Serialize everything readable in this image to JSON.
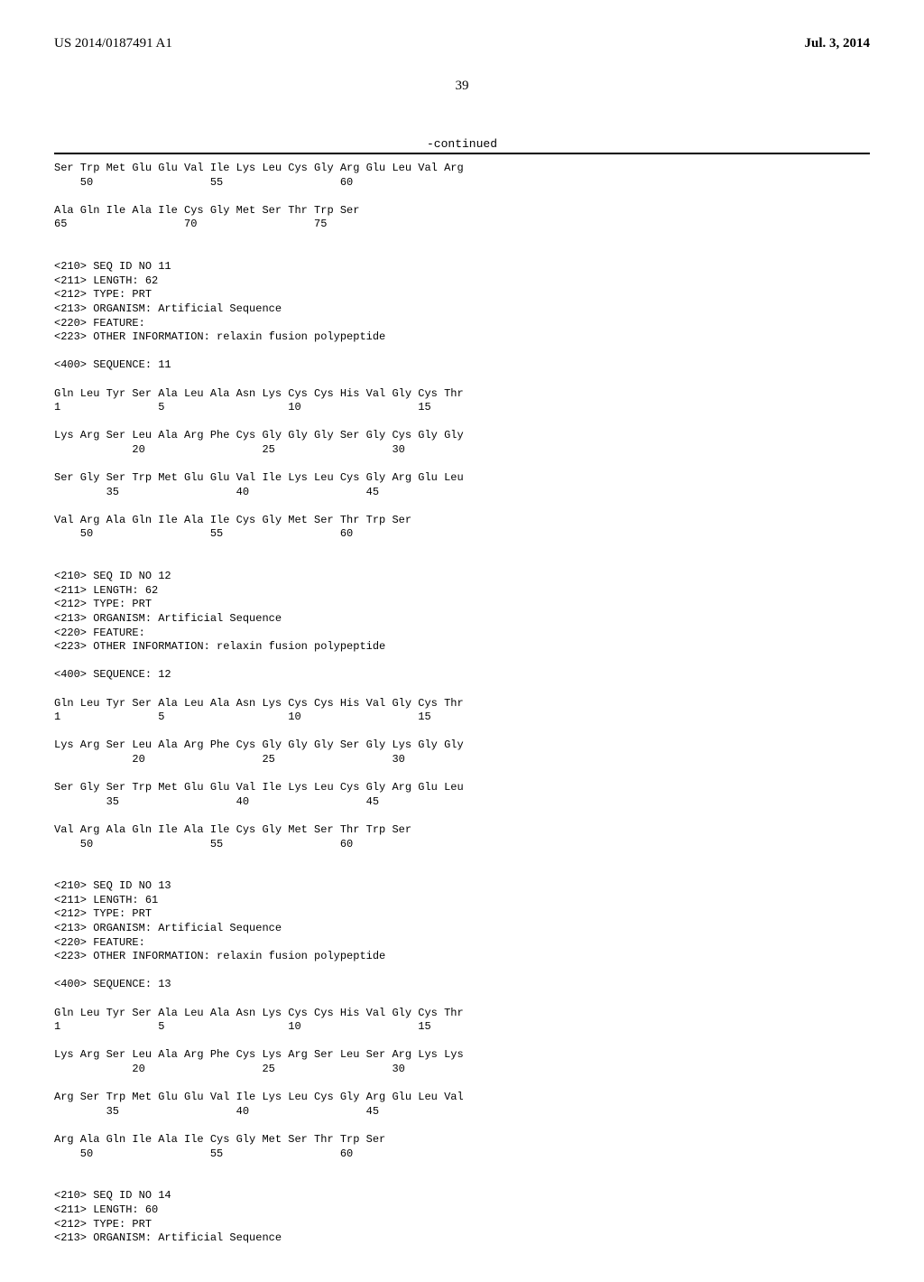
{
  "header": {
    "pub_num": "US 2014/0187491 A1",
    "pub_date": "Jul. 3, 2014"
  },
  "page_num": "39",
  "continued_label": "-continued",
  "listing_text": "Ser Trp Met Glu Glu Val Ile Lys Leu Cys Gly Arg Glu Leu Val Arg\n    50                  55                  60\n\nAla Gln Ile Ala Ile Cys Gly Met Ser Thr Trp Ser\n65                  70                  75\n\n\n<210> SEQ ID NO 11\n<211> LENGTH: 62\n<212> TYPE: PRT\n<213> ORGANISM: Artificial Sequence\n<220> FEATURE:\n<223> OTHER INFORMATION: relaxin fusion polypeptide\n\n<400> SEQUENCE: 11\n\nGln Leu Tyr Ser Ala Leu Ala Asn Lys Cys Cys His Val Gly Cys Thr\n1               5                   10                  15\n\nLys Arg Ser Leu Ala Arg Phe Cys Gly Gly Gly Ser Gly Cys Gly Gly\n            20                  25                  30\n\nSer Gly Ser Trp Met Glu Glu Val Ile Lys Leu Cys Gly Arg Glu Leu\n        35                  40                  45\n\nVal Arg Ala Gln Ile Ala Ile Cys Gly Met Ser Thr Trp Ser\n    50                  55                  60\n\n\n<210> SEQ ID NO 12\n<211> LENGTH: 62\n<212> TYPE: PRT\n<213> ORGANISM: Artificial Sequence\n<220> FEATURE:\n<223> OTHER INFORMATION: relaxin fusion polypeptide\n\n<400> SEQUENCE: 12\n\nGln Leu Tyr Ser Ala Leu Ala Asn Lys Cys Cys His Val Gly Cys Thr\n1               5                   10                  15\n\nLys Arg Ser Leu Ala Arg Phe Cys Gly Gly Gly Ser Gly Lys Gly Gly\n            20                  25                  30\n\nSer Gly Ser Trp Met Glu Glu Val Ile Lys Leu Cys Gly Arg Glu Leu\n        35                  40                  45\n\nVal Arg Ala Gln Ile Ala Ile Cys Gly Met Ser Thr Trp Ser\n    50                  55                  60\n\n\n<210> SEQ ID NO 13\n<211> LENGTH: 61\n<212> TYPE: PRT\n<213> ORGANISM: Artificial Sequence\n<220> FEATURE:\n<223> OTHER INFORMATION: relaxin fusion polypeptide\n\n<400> SEQUENCE: 13\n\nGln Leu Tyr Ser Ala Leu Ala Asn Lys Cys Cys His Val Gly Cys Thr\n1               5                   10                  15\n\nLys Arg Ser Leu Ala Arg Phe Cys Lys Arg Ser Leu Ser Arg Lys Lys\n            20                  25                  30\n\nArg Ser Trp Met Glu Glu Val Ile Lys Leu Cys Gly Arg Glu Leu Val\n        35                  40                  45\n\nArg Ala Gln Ile Ala Ile Cys Gly Met Ser Thr Trp Ser\n    50                  55                  60\n\n\n<210> SEQ ID NO 14\n<211> LENGTH: 60\n<212> TYPE: PRT\n<213> ORGANISM: Artificial Sequence"
}
